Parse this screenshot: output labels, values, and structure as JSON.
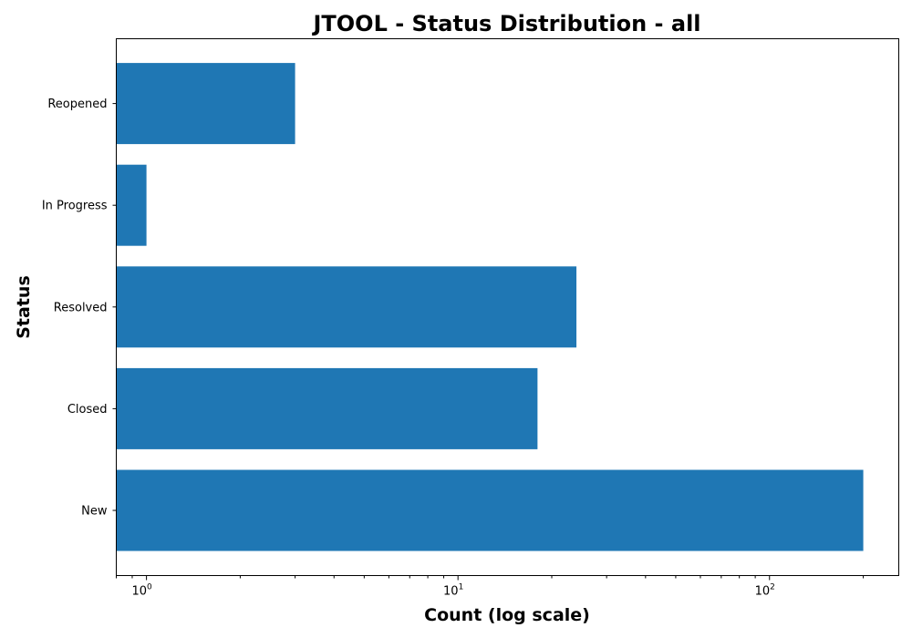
{
  "chart_data": {
    "type": "bar",
    "orientation": "horizontal",
    "title": "JTOOL - Status Distribution - all",
    "xlabel": "Count (log scale)",
    "ylabel": "Status",
    "x_scale": "log",
    "xlim": [
      0.8,
      260
    ],
    "categories": [
      "New",
      "Closed",
      "Resolved",
      "In Progress",
      "Reopened"
    ],
    "values": [
      200,
      18,
      24,
      1,
      3
    ],
    "x_major_ticks": [
      {
        "base": "10",
        "exp": "0",
        "value": 1
      },
      {
        "base": "10",
        "exp": "1",
        "value": 10
      },
      {
        "base": "10",
        "exp": "2",
        "value": 100
      }
    ],
    "bar_color": "#1f77b4",
    "grid": false,
    "legend": "none"
  }
}
